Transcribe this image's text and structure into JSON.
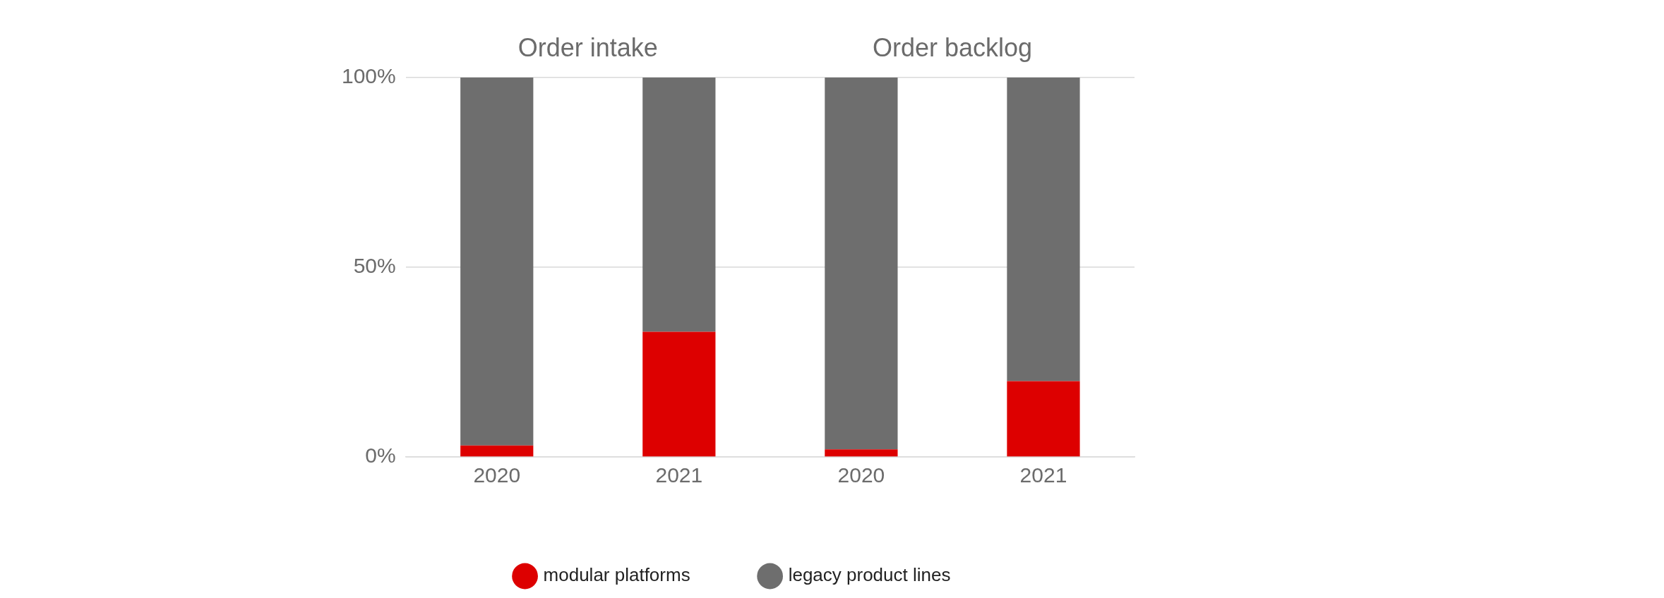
{
  "chart_data": {
    "type": "bar",
    "stacked": true,
    "categories": [
      "2020",
      "2021",
      "2020",
      "2021"
    ],
    "series": [
      {
        "name": "modular platforms",
        "color": "#dd0000",
        "values": [
          3,
          33,
          2,
          20
        ]
      },
      {
        "name": "legacy product lines",
        "color": "#6e6e6e",
        "values": [
          97,
          67,
          98,
          80
        ]
      }
    ],
    "ylim": [
      0,
      100
    ],
    "yticks": [
      {
        "value": 0,
        "label": "0%"
      },
      {
        "value": 50,
        "label": "50%"
      },
      {
        "value": 100,
        "label": "100%"
      }
    ],
    "grid": "y",
    "legend": "bottom",
    "annotations": [
      "Order intake",
      "Order backlog"
    ]
  }
}
